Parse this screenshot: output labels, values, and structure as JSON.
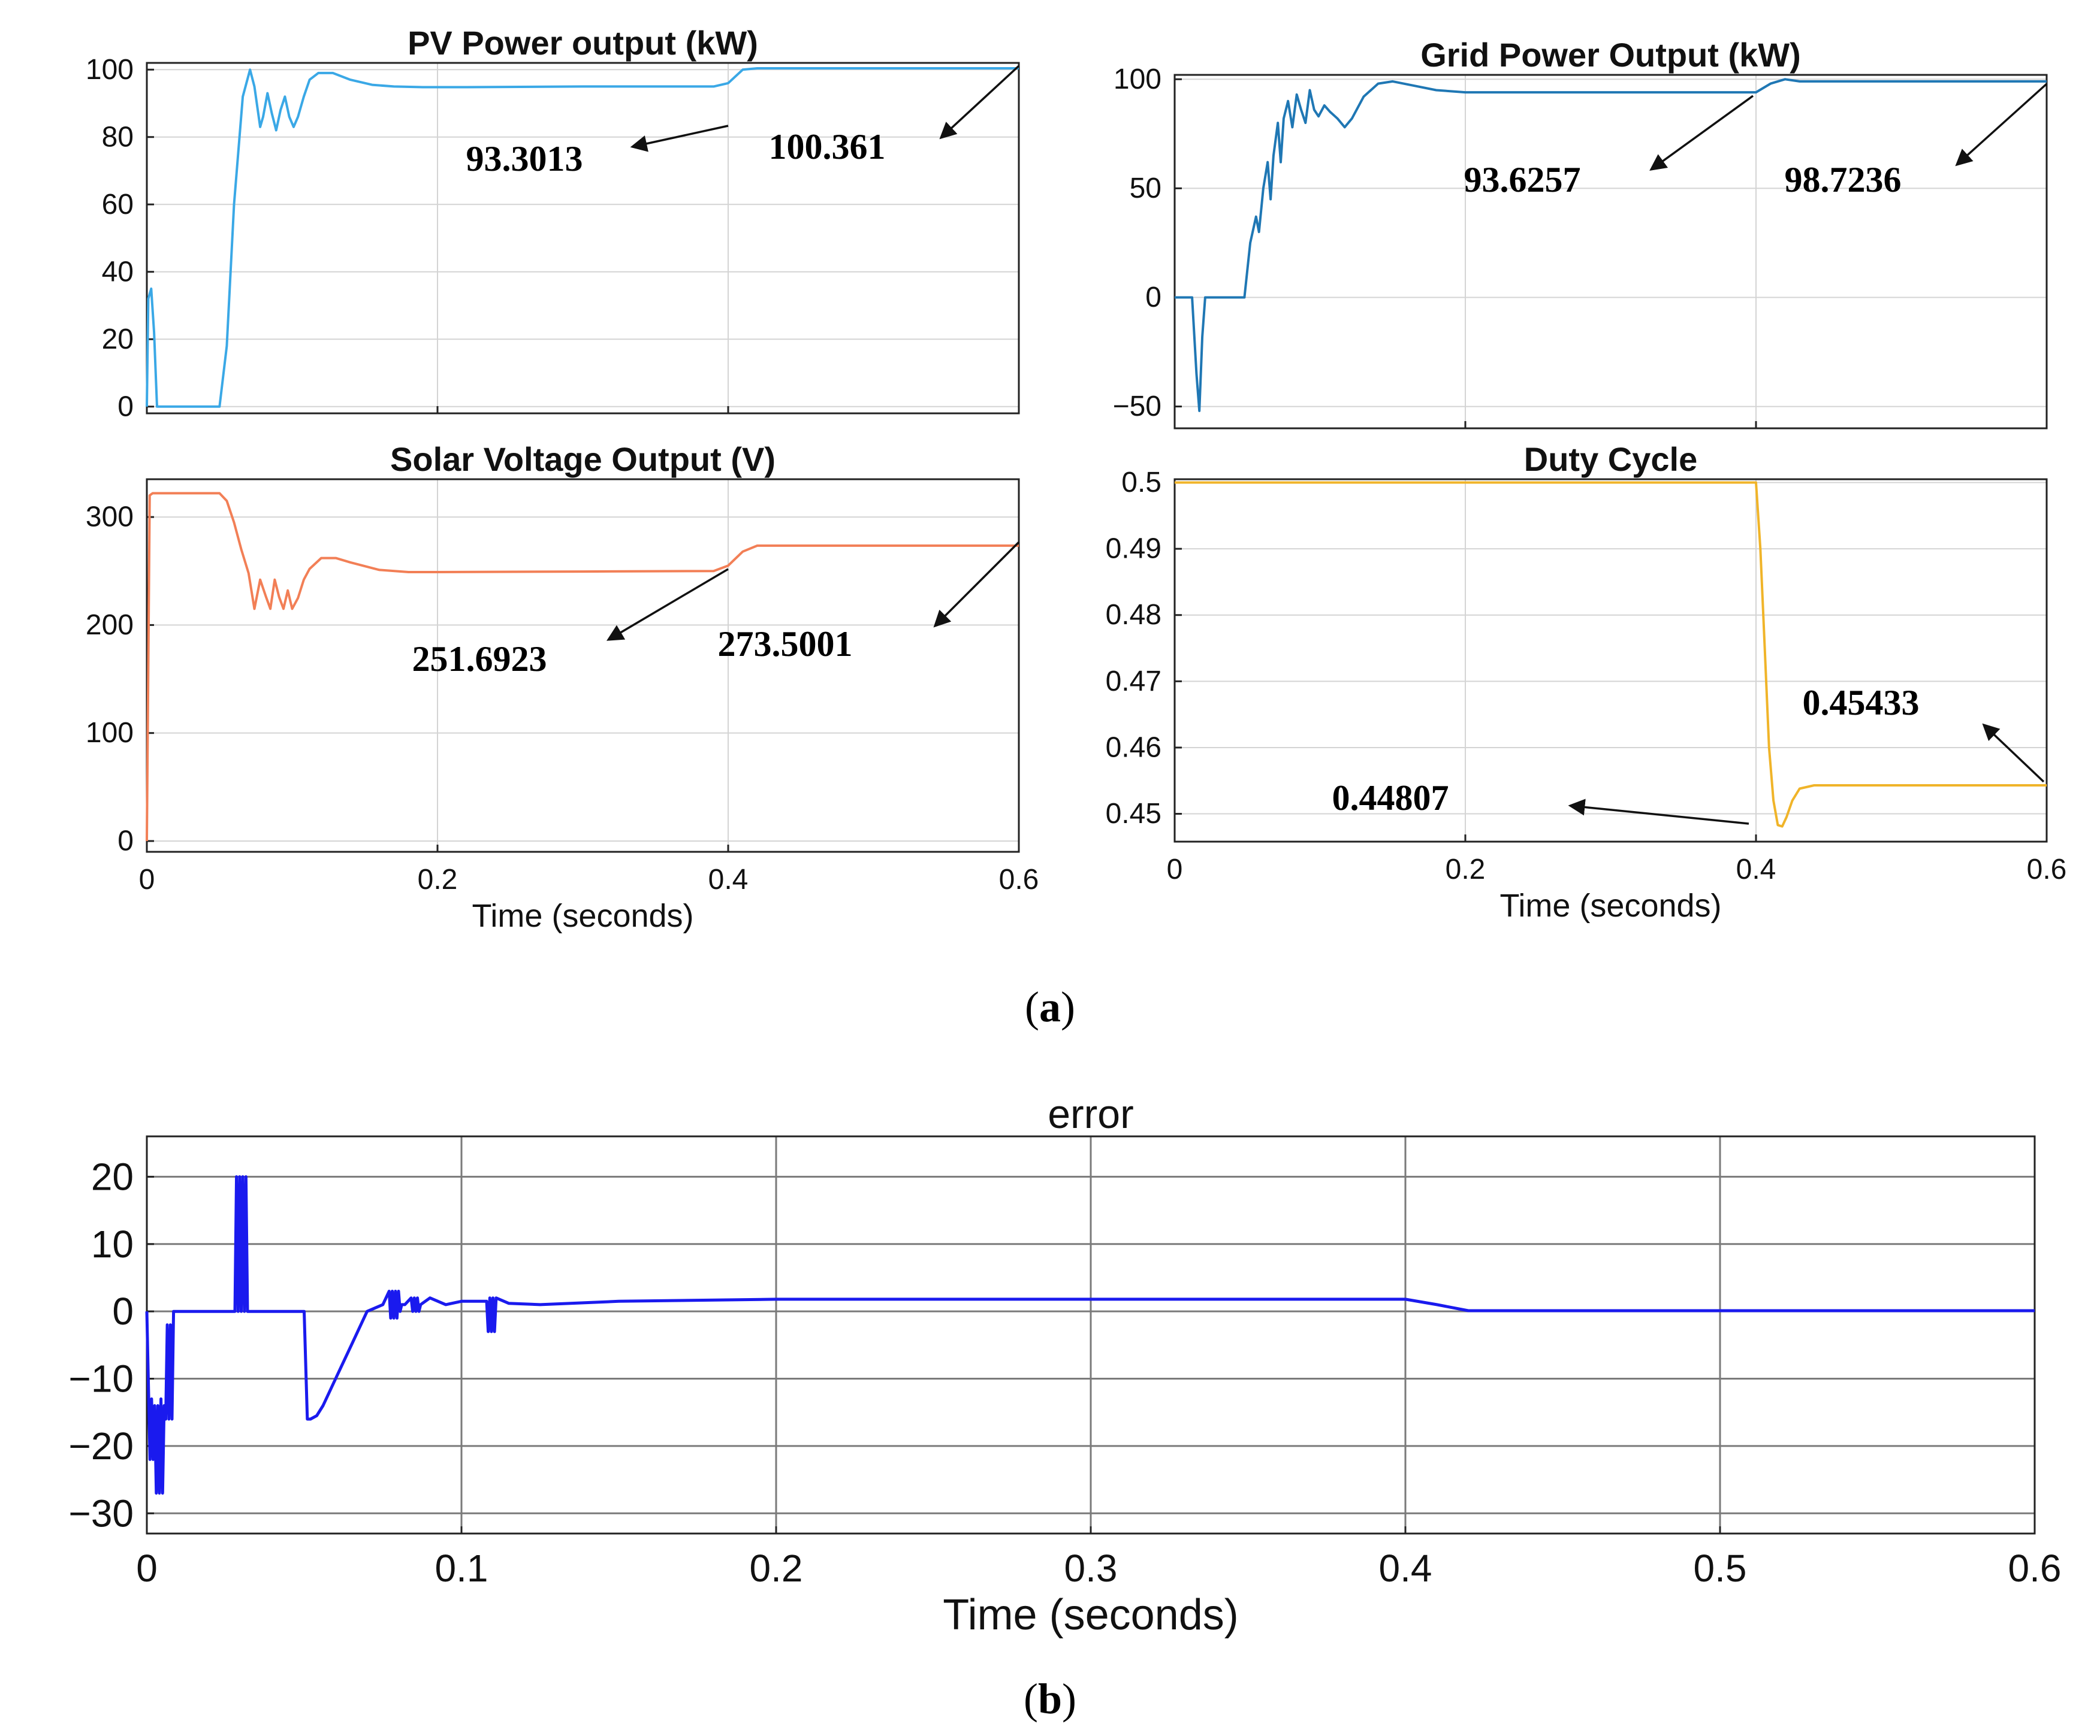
{
  "captions": [
    {
      "letter": "a"
    },
    {
      "letter": "b"
    }
  ],
  "chart_data": [
    {
      "id": "pv_power",
      "type": "line",
      "title": "PV Power output (kW)",
      "xlabel": "",
      "ylabel": "",
      "xlim": [
        0,
        0.6
      ],
      "ylim": [
        -2,
        102
      ],
      "xticks": [
        0,
        0.2,
        0.4,
        0.6
      ],
      "yticks": [
        0,
        20,
        40,
        60,
        80,
        100
      ],
      "show_x_tick_labels": false,
      "grid": true,
      "color": "#3aa8e6",
      "series": [
        {
          "x": [
            0,
            0.001,
            0.003,
            0.005,
            0.007,
            0.05,
            0.055,
            0.06,
            0.066,
            0.071,
            0.074,
            0.078,
            0.08,
            0.083,
            0.086,
            0.089,
            0.092,
            0.095,
            0.098,
            0.101,
            0.104,
            0.108,
            0.112,
            0.118,
            0.128,
            0.14,
            0.155,
            0.17,
            0.19,
            0.22,
            0.3,
            0.39,
            0.4,
            0.41,
            0.42,
            0.5,
            0.6
          ],
          "y": [
            0,
            32,
            35,
            22,
            0,
            0,
            18,
            60,
            92,
            100,
            95,
            83,
            86,
            93,
            87,
            82,
            88,
            92,
            86,
            83,
            86,
            92,
            97,
            99,
            99,
            97,
            95.5,
            95,
            94.8,
            94.8,
            95,
            95,
            96,
            100,
            100.4,
            100.4,
            100.4
          ]
        }
      ],
      "annotations": [
        {
          "text": "93.3013",
          "value": 93.3013
        },
        {
          "text": "100.361",
          "value": 100.361
        }
      ]
    },
    {
      "id": "grid_power",
      "type": "line",
      "title": "Grid Power Output (kW)",
      "xlabel": "",
      "ylabel": "",
      "xlim": [
        0,
        0.6
      ],
      "ylim": [
        -60,
        102
      ],
      "xticks": [
        0,
        0.2,
        0.4,
        0.6
      ],
      "yticks": [
        -50,
        0,
        50,
        100
      ],
      "show_x_tick_labels": false,
      "grid": true,
      "color": "#1f77b4",
      "series": [
        {
          "x": [
            0,
            0.012,
            0.015,
            0.017,
            0.019,
            0.021,
            0.048,
            0.052,
            0.056,
            0.058,
            0.061,
            0.064,
            0.066,
            0.068,
            0.071,
            0.073,
            0.075,
            0.078,
            0.081,
            0.084,
            0.087,
            0.09,
            0.093,
            0.096,
            0.099,
            0.103,
            0.107,
            0.112,
            0.117,
            0.122,
            0.13,
            0.14,
            0.15,
            0.165,
            0.18,
            0.2,
            0.3,
            0.39,
            0.4,
            0.41,
            0.42,
            0.43,
            0.45,
            0.5,
            0.6
          ],
          "y": [
            0,
            0,
            -35,
            -52,
            -18,
            0,
            0,
            25,
            37,
            30,
            50,
            62,
            45,
            65,
            80,
            62,
            82,
            90,
            78,
            93,
            86,
            80,
            95,
            86,
            83,
            88,
            85,
            82,
            78,
            82,
            92,
            98,
            99,
            97,
            95,
            94,
            94,
            94,
            94,
            98,
            100,
            99,
            99,
            99,
            99
          ]
        }
      ],
      "annotations": [
        {
          "text": "93.6257",
          "value": 93.6257
        },
        {
          "text": "98.7236",
          "value": 98.7236
        }
      ]
    },
    {
      "id": "solar_voltage",
      "type": "line",
      "title": "Solar Voltage Output (V)",
      "xlabel": "Time (seconds)",
      "ylabel": "",
      "xlim": [
        0,
        0.6
      ],
      "ylim": [
        -10,
        335
      ],
      "xticks": [
        0,
        0.2,
        0.4,
        0.6
      ],
      "yticks": [
        0,
        100,
        200,
        300
      ],
      "show_x_tick_labels": true,
      "grid": true,
      "color": "#f27f56",
      "series": [
        {
          "x": [
            0,
            0.002,
            0.004,
            0.01,
            0.05,
            0.055,
            0.06,
            0.065,
            0.07,
            0.074,
            0.078,
            0.082,
            0.085,
            0.088,
            0.091,
            0.094,
            0.097,
            0.1,
            0.104,
            0.108,
            0.112,
            0.12,
            0.13,
            0.14,
            0.16,
            0.18,
            0.2,
            0.3,
            0.39,
            0.4,
            0.41,
            0.42,
            0.5,
            0.6
          ],
          "y": [
            0,
            320,
            322,
            322,
            322,
            315,
            295,
            270,
            248,
            215,
            242,
            226,
            215,
            242,
            226,
            215,
            232,
            215,
            225,
            242,
            252,
            262,
            262,
            258,
            251,
            249,
            249,
            249.5,
            250,
            255,
            268,
            273.5,
            273.5,
            273.5
          ]
        }
      ],
      "annotations": [
        {
          "text": "251.6923",
          "value": 251.6923
        },
        {
          "text": "273.5001",
          "value": 273.5001
        }
      ]
    },
    {
      "id": "duty_cycle",
      "type": "line",
      "title": "Duty Cycle",
      "xlabel": "Time (seconds)",
      "ylabel": "",
      "xlim": [
        0,
        0.6
      ],
      "ylim": [
        0.4458,
        0.5005
      ],
      "xticks": [
        0,
        0.2,
        0.4,
        0.6
      ],
      "yticks": [
        0.45,
        0.46,
        0.47,
        0.48,
        0.49,
        0.5
      ],
      "show_x_tick_labels": true,
      "grid": true,
      "color": "#f0b429",
      "series": [
        {
          "x": [
            0,
            0.2,
            0.4,
            0.403,
            0.406,
            0.409,
            0.412,
            0.415,
            0.418,
            0.421,
            0.425,
            0.43,
            0.44,
            0.45,
            0.5,
            0.6
          ],
          "y": [
            0.5,
            0.5,
            0.5,
            0.49,
            0.475,
            0.46,
            0.452,
            0.4483,
            0.4481,
            0.4495,
            0.452,
            0.4538,
            0.4543,
            0.4543,
            0.4543,
            0.4543
          ]
        }
      ],
      "annotations": [
        {
          "text": "0.45433",
          "value": 0.45433
        },
        {
          "text": "0.44807",
          "value": 0.44807
        }
      ]
    },
    {
      "id": "error",
      "type": "line",
      "title": "error",
      "xlabel": "Time (seconds)",
      "ylabel": "",
      "xlim": [
        0,
        0.6
      ],
      "ylim": [
        -33,
        26
      ],
      "xticks": [
        0,
        0.1,
        0.2,
        0.3,
        0.4,
        0.5,
        0.6
      ],
      "yticks": [
        -30,
        -20,
        -10,
        0,
        10,
        20
      ],
      "show_x_tick_labels": true,
      "grid": true,
      "color": "#1a1aee",
      "series": [
        {
          "x": [
            0,
            0.001,
            0.0015,
            0.002,
            0.0025,
            0.003,
            0.0035,
            0.004,
            0.0045,
            0.005,
            0.0055,
            0.006,
            0.0065,
            0.007,
            0.0075,
            0.008,
            0.0085,
            0.009,
            0.028,
            0.0285,
            0.029,
            0.0295,
            0.03,
            0.0305,
            0.031,
            0.0315,
            0.032,
            0.05,
            0.051,
            0.052,
            0.054,
            0.056,
            0.06,
            0.065,
            0.07,
            0.075,
            0.077,
            0.0775,
            0.078,
            0.0785,
            0.079,
            0.0795,
            0.08,
            0.0805,
            0.081,
            0.082,
            0.084,
            0.0845,
            0.085,
            0.0855,
            0.086,
            0.0865,
            0.087,
            0.09,
            0.095,
            0.1,
            0.108,
            0.1085,
            0.109,
            0.1095,
            0.11,
            0.1105,
            0.111,
            0.115,
            0.125,
            0.15,
            0.2,
            0.3,
            0.395,
            0.4,
            0.41,
            0.42,
            0.5,
            0.6
          ],
          "y": [
            0,
            -22,
            -13,
            -22,
            -14,
            -27,
            -14,
            -27,
            -13,
            -27,
            -14,
            -16,
            -2,
            -16,
            -2,
            -16,
            0,
            0,
            0,
            20,
            0,
            20,
            0,
            20,
            0,
            20,
            0,
            0,
            -16,
            -16,
            -15.5,
            -14,
            -10,
            -5,
            0,
            1,
            3,
            -1,
            3,
            -1,
            3,
            -1,
            3,
            0,
            1,
            1,
            2,
            0,
            2,
            0,
            2,
            0,
            1,
            2,
            1,
            1.5,
            1.5,
            -3,
            2,
            -3,
            2,
            -3,
            2,
            1.2,
            1,
            1.5,
            1.8,
            1.8,
            1.8,
            1.8,
            1,
            0.1,
            0.1,
            0.1
          ]
        }
      ],
      "annotations": []
    }
  ]
}
